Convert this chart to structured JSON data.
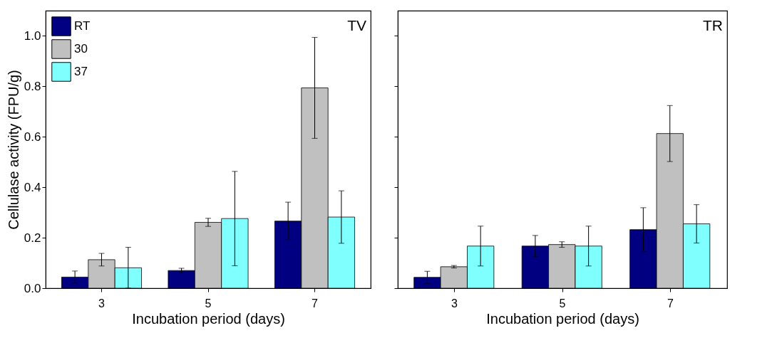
{
  "chart_data": [
    {
      "type": "bar",
      "title": "TV",
      "xlabel": "Incubation period (days)",
      "ylabel": "Cellulase activity (FPU/g)",
      "categories": [
        "3",
        "5",
        "7"
      ],
      "ylim": [
        0,
        1.1
      ],
      "yticks": [
        {
          "value": 0,
          "label": "0.0"
        },
        0.2,
        0.4,
        0.6,
        0.8,
        {
          "value": 1,
          "label": "1.0"
        }
      ],
      "legend": "top left",
      "series": [
        {
          "name": "RT",
          "color": "#000080",
          "values": [
            0.044,
            0.07,
            0.266
          ],
          "errors": [
            0.024,
            0.009,
            0.075
          ]
        },
        {
          "name": "30",
          "color": "#c0c0c0",
          "values": [
            0.113,
            0.261,
            0.794
          ],
          "errors": [
            0.025,
            0.016,
            0.2
          ]
        },
        {
          "name": "37",
          "color": "#80ffff",
          "values": [
            0.081,
            0.276,
            0.282
          ],
          "errors": [
            0.081,
            0.187,
            0.104
          ]
        }
      ]
    },
    {
      "type": "bar",
      "title": "TR",
      "xlabel": "Incubation period (days)",
      "categories": [
        "3",
        "5",
        "7"
      ],
      "ylim": [
        0,
        1.1
      ],
      "yticks": [
        0,
        0.2,
        0.4,
        0.6,
        0.8,
        1
      ],
      "tick_labels": "x",
      "series": [
        {
          "name": "RT",
          "color": "#000080",
          "values": [
            0.043,
            0.167,
            0.232
          ],
          "errors": [
            0.024,
            0.042,
            0.087
          ]
        },
        {
          "name": "30",
          "color": "#c0c0c0",
          "values": [
            0.085,
            0.173,
            0.613
          ],
          "errors": [
            0.005,
            0.011,
            0.111
          ]
        },
        {
          "name": "37",
          "color": "#80ffff",
          "values": [
            0.167,
            0.167,
            0.255
          ],
          "errors": [
            0.079,
            0.079,
            0.076
          ]
        }
      ]
    }
  ]
}
